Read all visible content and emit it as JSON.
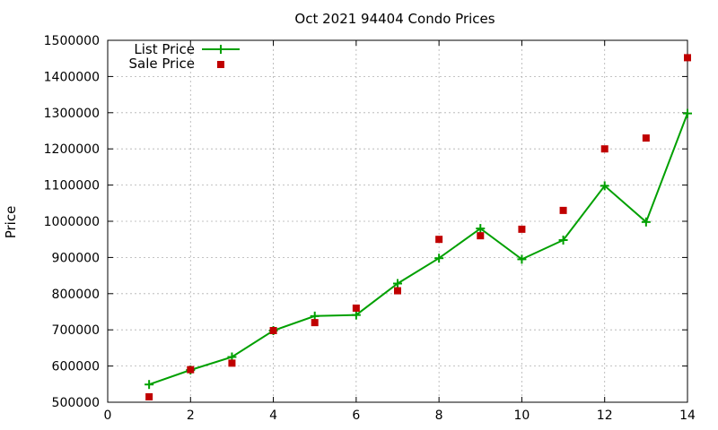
{
  "chart_data": {
    "type": "line",
    "title": "Oct 2021 94404 Condo Prices",
    "ylabel": "Price",
    "xlabel": "",
    "xlim": [
      0,
      14
    ],
    "ylim": [
      500000,
      1500000
    ],
    "xticks": [
      0,
      2,
      4,
      6,
      8,
      10,
      12,
      14
    ],
    "yticks": [
      500000,
      600000,
      700000,
      800000,
      900000,
      1000000,
      1100000,
      1200000,
      1300000,
      1400000,
      1500000
    ],
    "grid": true,
    "legend_position": "top-left",
    "series": [
      {
        "name": "List Price",
        "style": "line-with-plus-markers",
        "color": "#00a000",
        "x": [
          1,
          2,
          3,
          4,
          5,
          6,
          7,
          8,
          9,
          10,
          11,
          12,
          13,
          14
        ],
        "y": [
          549000,
          589000,
          625000,
          698000,
          738000,
          741000,
          828000,
          898000,
          980000,
          895000,
          948000,
          1098000,
          998000,
          1298000
        ]
      },
      {
        "name": "Sale Price",
        "style": "square-markers",
        "color": "#c00000",
        "x": [
          1,
          2,
          3,
          4,
          5,
          6,
          7,
          8,
          9,
          10,
          11,
          12,
          13,
          14
        ],
        "y": [
          515000,
          590000,
          608000,
          698000,
          720000,
          760000,
          808000,
          950000,
          960000,
          978000,
          1030000,
          1200000,
          1230000,
          1452000
        ]
      }
    ]
  }
}
